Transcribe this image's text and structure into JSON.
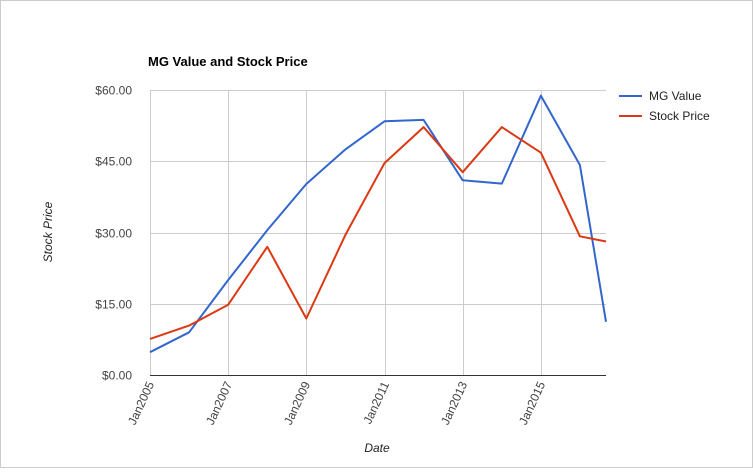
{
  "chart_data": {
    "type": "line",
    "title": "MG Value and Stock Price",
    "xlabel": "Date",
    "ylabel": "Stock Price",
    "x_tick_labels": [
      "Jan2005",
      "Jan2007",
      "Jan2009",
      "Jan2011",
      "Jan2013",
      "Jan2015"
    ],
    "y_tick_labels": [
      "$0.00",
      "$15.00",
      "$30.00",
      "$45.00",
      "$60.00"
    ],
    "y_ticks": [
      0,
      15,
      30,
      45,
      60
    ],
    "ylim": [
      0,
      60
    ],
    "xlim": [
      "2005-01",
      "2016-09"
    ],
    "grid": true,
    "legend_position": "right",
    "series": [
      {
        "name": "MG Value",
        "color": "#3366cc",
        "points": [
          {
            "x": "2005-01",
            "y": 4.8
          },
          {
            "x": "2006-01",
            "y": 9.0
          },
          {
            "x": "2007-01",
            "y": 20.0
          },
          {
            "x": "2008-01",
            "y": 30.5
          },
          {
            "x": "2009-01",
            "y": 40.2
          },
          {
            "x": "2010-01",
            "y": 47.5
          },
          {
            "x": "2011-01",
            "y": 53.4
          },
          {
            "x": "2012-01",
            "y": 53.7
          },
          {
            "x": "2013-01",
            "y": 41.0
          },
          {
            "x": "2014-01",
            "y": 40.3
          },
          {
            "x": "2015-01",
            "y": 58.8
          },
          {
            "x": "2016-01",
            "y": 44.2
          },
          {
            "x": "2016-09",
            "y": 11.2
          }
        ]
      },
      {
        "name": "Stock Price",
        "color": "#dc3912",
        "points": [
          {
            "x": "2005-01",
            "y": 7.6
          },
          {
            "x": "2006-01",
            "y": 10.4
          },
          {
            "x": "2007-01",
            "y": 14.8
          },
          {
            "x": "2008-01",
            "y": 27.0
          },
          {
            "x": "2009-01",
            "y": 11.9
          },
          {
            "x": "2010-01",
            "y": 29.5
          },
          {
            "x": "2011-01",
            "y": 44.6
          },
          {
            "x": "2012-01",
            "y": 52.2
          },
          {
            "x": "2013-01",
            "y": 42.7
          },
          {
            "x": "2014-01",
            "y": 52.2
          },
          {
            "x": "2015-01",
            "y": 46.8
          },
          {
            "x": "2016-01",
            "y": 29.2
          },
          {
            "x": "2016-09",
            "y": 28.1
          }
        ]
      }
    ]
  }
}
